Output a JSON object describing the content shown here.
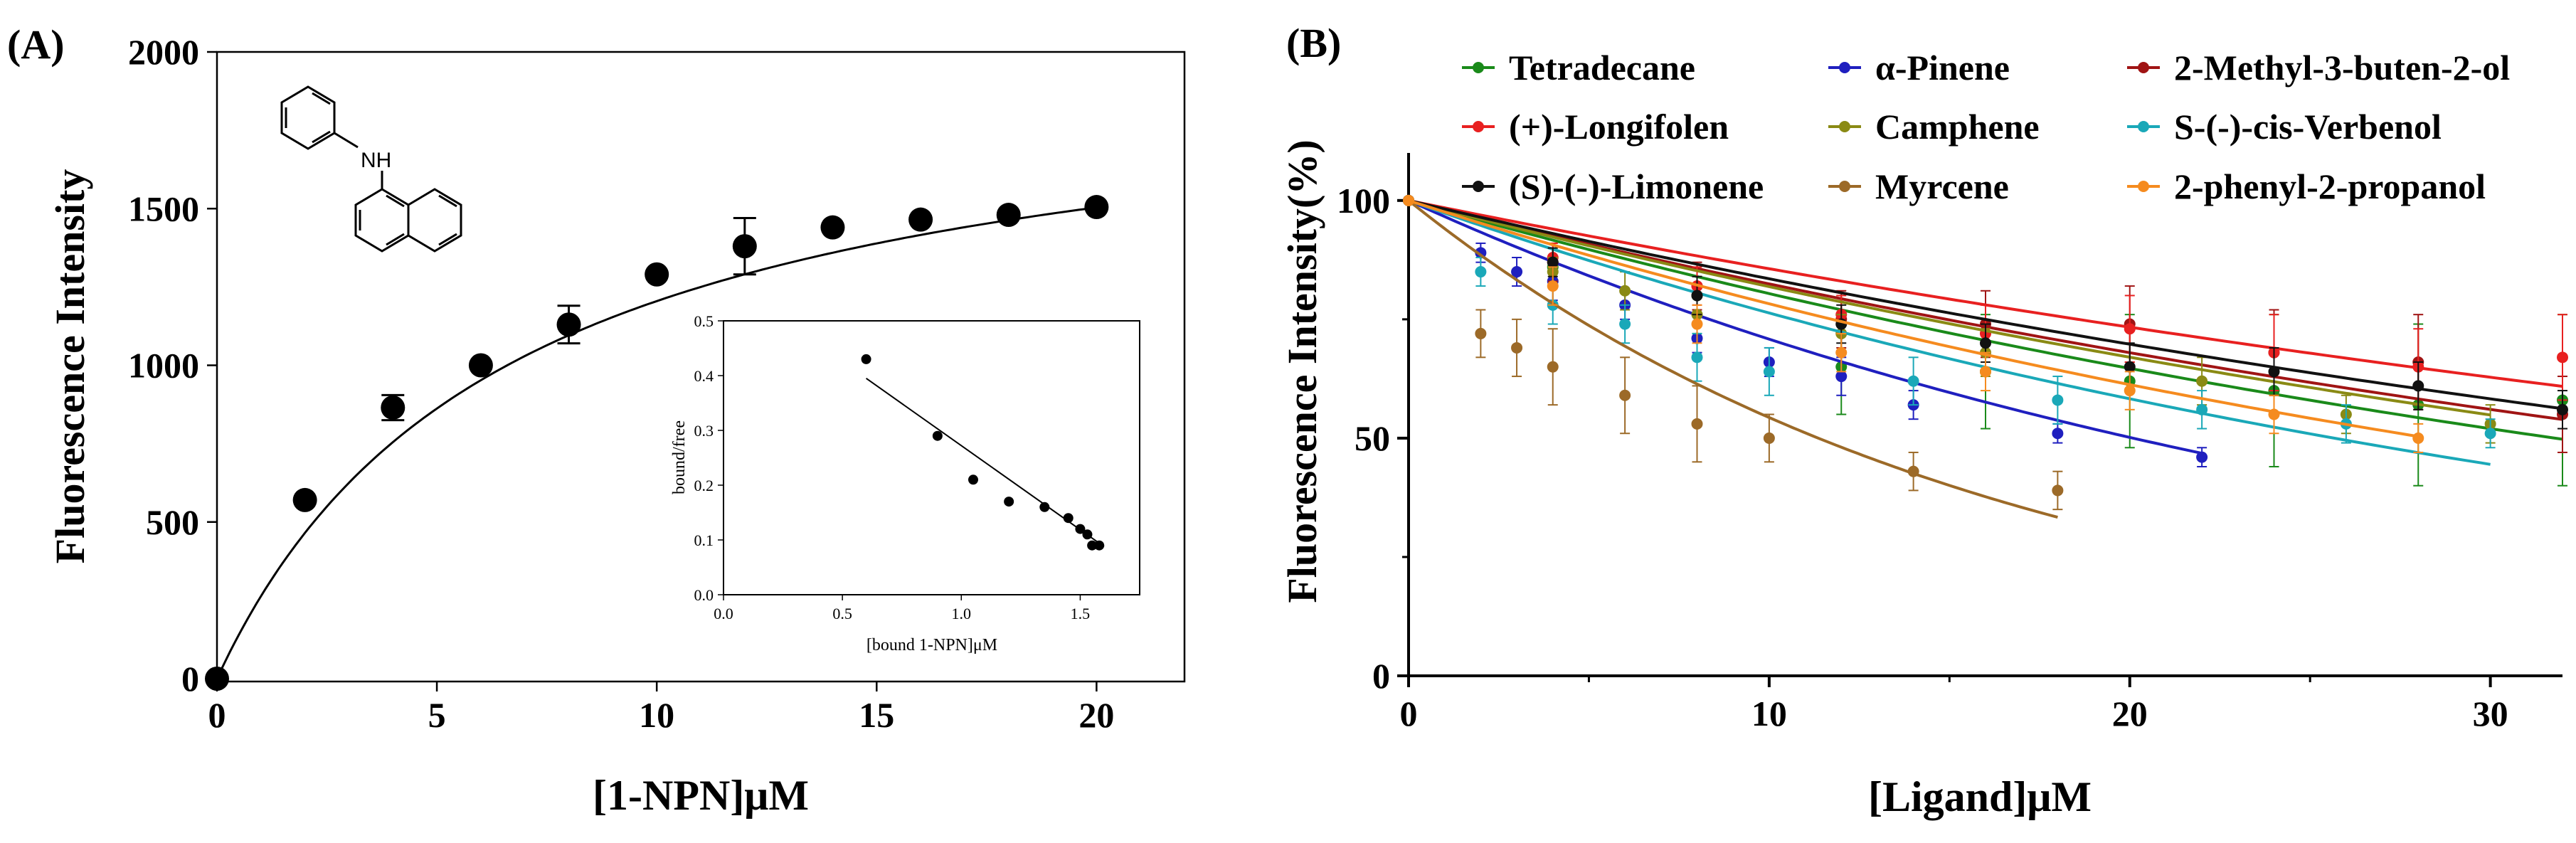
{
  "chart_data": [
    {
      "panel": "(A)",
      "type": "scatter",
      "xlabel": "[1-NPN]μM",
      "ylabel": "Fluorescence Intensity",
      "xlim": [
        0,
        22
      ],
      "ylim": [
        0,
        2000
      ],
      "xticks": [
        0,
        5,
        10,
        15,
        20
      ],
      "yticks": [
        0,
        500,
        1000,
        1500,
        2000
      ],
      "molecule_label": "NH",
      "points": [
        {
          "x": 0,
          "y": 0,
          "err": 0
        },
        {
          "x": 2,
          "y": 570,
          "err": 0
        },
        {
          "x": 4,
          "y": 865,
          "err": 40
        },
        {
          "x": 6,
          "y": 1000,
          "err": 0
        },
        {
          "x": 8,
          "y": 1130,
          "err": 60
        },
        {
          "x": 10,
          "y": 1290,
          "err": 0
        },
        {
          "x": 12,
          "y": 1380,
          "err": 90
        },
        {
          "x": 14,
          "y": 1440,
          "err": 0
        },
        {
          "x": 16,
          "y": 1465,
          "err": 0
        },
        {
          "x": 18,
          "y": 1480,
          "err": 0
        },
        {
          "x": 20,
          "y": 1505,
          "err": 0
        }
      ],
      "fit": {
        "model": "one-site binding",
        "bmax": 2000,
        "kd": 6.6
      },
      "inset": {
        "type": "scatter",
        "xlabel": "[bound 1-NPN]μM",
        "ylabel": "bound/free",
        "xlim": [
          0,
          1.75
        ],
        "ylim": [
          0,
          0.5
        ],
        "xticks": [
          0.0,
          0.5,
          1.0,
          1.5
        ],
        "xtick_labels": [
          "0.0",
          "0.5",
          "1.0",
          "1.5"
        ],
        "yticks": [
          0.0,
          0.1,
          0.2,
          0.3,
          0.4,
          0.5
        ],
        "ytick_labels": [
          "0.0",
          "0.1",
          "0.2",
          "0.3",
          "0.4",
          "0.5"
        ],
        "points": [
          {
            "x": 0.6,
            "y": 0.43
          },
          {
            "x": 0.9,
            "y": 0.29
          },
          {
            "x": 1.05,
            "y": 0.21
          },
          {
            "x": 1.2,
            "y": 0.17
          },
          {
            "x": 1.35,
            "y": 0.16
          },
          {
            "x": 1.45,
            "y": 0.14
          },
          {
            "x": 1.5,
            "y": 0.12
          },
          {
            "x": 1.53,
            "y": 0.11
          },
          {
            "x": 1.55,
            "y": 0.09
          },
          {
            "x": 1.58,
            "y": 0.09
          }
        ],
        "regression": {
          "x": [
            0.6,
            1.6
          ],
          "y": [
            0.395,
            0.088
          ]
        }
      }
    },
    {
      "panel": "(B)",
      "type": "scatter",
      "xlabel": "[Ligand]μM",
      "ylabel": "Fluorescence Intensity(%)",
      "xlim": [
        0,
        32
      ],
      "ylim": [
        0,
        110
      ],
      "xticks": [
        0,
        10,
        20,
        30
      ],
      "yticks": [
        0,
        50,
        100
      ],
      "series": [
        {
          "name": "Tetradecane",
          "color": "#1a8a1a",
          "k": 0.0218,
          "points": [
            [
              0,
              100,
              0
            ],
            [
              4,
              86,
              4
            ],
            [
              8,
              80,
              4
            ],
            [
              12,
              65,
              10
            ],
            [
              16,
              64,
              12
            ],
            [
              20,
              62,
              14
            ],
            [
              24,
              60,
              16
            ],
            [
              28,
              57,
              17
            ],
            [
              32,
              58,
              18
            ]
          ]
        },
        {
          "name": "α-Pinene",
          "color": "#1f1fbf",
          "k": 0.0345,
          "points": [
            [
              0,
              100,
              0
            ],
            [
              2,
              89,
              2
            ],
            [
              3,
              85,
              3
            ],
            [
              4,
              83,
              4
            ],
            [
              6,
              78,
              3
            ],
            [
              8,
              71,
              3
            ],
            [
              10,
              66,
              3
            ],
            [
              12,
              63,
              4
            ],
            [
              14,
              57,
              3
            ],
            [
              18,
              51,
              2
            ],
            [
              22,
              46,
              2
            ]
          ]
        },
        {
          "name": "2-Methyl-3-buten-2-ol",
          "color": "#a01414",
          "k": 0.0193,
          "points": [
            [
              0,
              100,
              0
            ],
            [
              4,
              87,
              4
            ],
            [
              8,
              82,
              5
            ],
            [
              12,
              75,
              6
            ],
            [
              16,
              74,
              7
            ],
            [
              20,
              74,
              8
            ],
            [
              24,
              68,
              9
            ],
            [
              28,
              66,
              10
            ],
            [
              32,
              55,
              8
            ]
          ]
        },
        {
          "name": "(+)-Longifolen",
          "color": "#e82020",
          "k": 0.0155,
          "points": [
            [
              0,
              100,
              0
            ],
            [
              4,
              88,
              3
            ],
            [
              8,
              82,
              4
            ],
            [
              12,
              76,
              4
            ],
            [
              16,
              72,
              6
            ],
            [
              20,
              73,
              7
            ],
            [
              24,
              68,
              8
            ],
            [
              28,
              65,
              8
            ],
            [
              32,
              67,
              9
            ]
          ]
        },
        {
          "name": "Camphene",
          "color": "#8a8a14",
          "k": 0.02,
          "points": [
            [
              0,
              100,
              0
            ],
            [
              4,
              85,
              3
            ],
            [
              6,
              81,
              4
            ],
            [
              8,
              76,
              4
            ],
            [
              12,
              72,
              4
            ],
            [
              16,
              68,
              5
            ],
            [
              22,
              62,
              5
            ],
            [
              26,
              55,
              4
            ],
            [
              30,
              53,
              4
            ]
          ]
        },
        {
          "name": "S-(-)-cis-Verbenol",
          "color": "#1aa8b8",
          "k": 0.027,
          "points": [
            [
              0,
              100,
              0
            ],
            [
              2,
              85,
              3
            ],
            [
              4,
              78,
              4
            ],
            [
              6,
              74,
              4
            ],
            [
              8,
              67,
              5
            ],
            [
              10,
              64,
              5
            ],
            [
              14,
              62,
              5
            ],
            [
              18,
              58,
              5
            ],
            [
              22,
              56,
              4
            ],
            [
              26,
              53,
              4
            ],
            [
              30,
              51,
              3
            ]
          ]
        },
        {
          "name": "(S)-(-)-Limonene",
          "color": "#111111",
          "k": 0.018,
          "points": [
            [
              0,
              100,
              0
            ],
            [
              4,
              87,
              3
            ],
            [
              8,
              80,
              4
            ],
            [
              12,
              74,
              4
            ],
            [
              16,
              70,
              4
            ],
            [
              20,
              65,
              5
            ],
            [
              24,
              64,
              5
            ],
            [
              28,
              61,
              5
            ],
            [
              32,
              56,
              4
            ]
          ]
        },
        {
          "name": "Myrcene",
          "color": "#9c6a28",
          "k": 0.061,
          "points": [
            [
              0,
              100,
              0
            ],
            [
              2,
              72,
              5
            ],
            [
              3,
              69,
              6
            ],
            [
              4,
              65,
              8
            ],
            [
              6,
              59,
              8
            ],
            [
              8,
              53,
              8
            ],
            [
              10,
              50,
              5
            ],
            [
              14,
              43,
              4
            ],
            [
              18,
              39,
              4
            ]
          ]
        },
        {
          "name": "2-phenyl-2-propanol",
          "color": "#f58b1f",
          "k": 0.0245,
          "points": [
            [
              0,
              100,
              0
            ],
            [
              4,
              82,
              4
            ],
            [
              8,
              74,
              4
            ],
            [
              12,
              68,
              4
            ],
            [
              16,
              64,
              4
            ],
            [
              20,
              60,
              4
            ],
            [
              24,
              55,
              4
            ],
            [
              28,
              50,
              3
            ]
          ]
        }
      ]
    }
  ]
}
